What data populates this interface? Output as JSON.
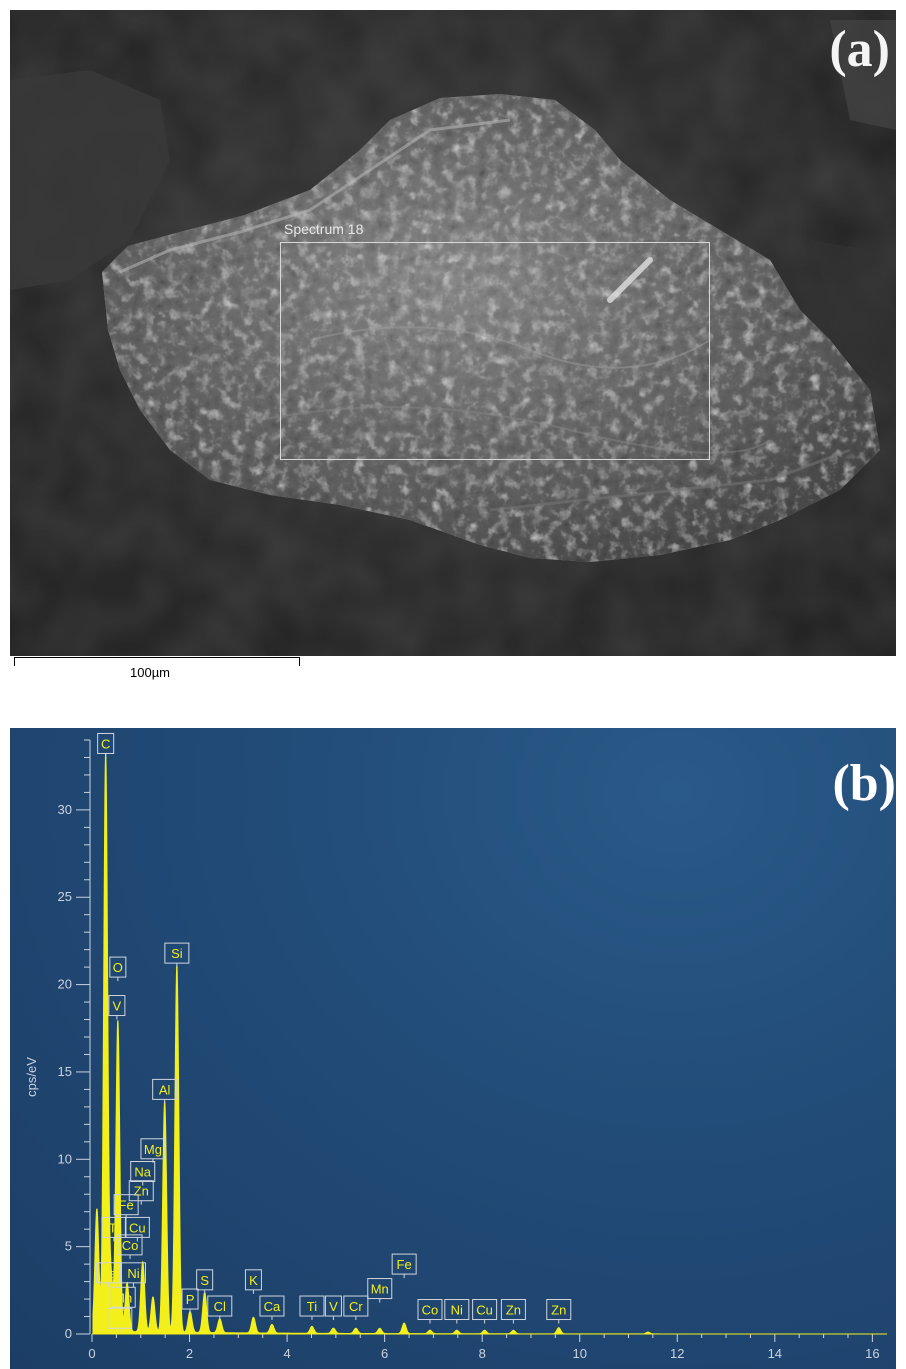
{
  "panel_a": {
    "letter": "(a)",
    "spectrum_label": "Spectrum 18",
    "scalebar_label": "100µm"
  },
  "panel_b": {
    "letter": "(b)"
  },
  "chart_data": {
    "type": "line",
    "title": "",
    "xlabel": "",
    "ylabel": "cps/eV",
    "xlim": [
      0,
      16.3
    ],
    "ylim": [
      0,
      34
    ],
    "x_ticks": [
      0,
      2,
      4,
      6,
      8,
      10,
      12,
      14,
      16
    ],
    "y_ticks": [
      0,
      5,
      10,
      15,
      20,
      25,
      30
    ],
    "series_color": "#f2ef1a",
    "peaks": [
      {
        "x": 0.1,
        "y": 7.0
      },
      {
        "x": 0.28,
        "y": 33.0
      },
      {
        "x": 0.39,
        "y": 3.0
      },
      {
        "x": 0.53,
        "y": 17.8
      },
      {
        "x": 0.72,
        "y": 2.8
      },
      {
        "x": 1.04,
        "y": 4.0
      },
      {
        "x": 1.25,
        "y": 2.0
      },
      {
        "x": 1.49,
        "y": 13.2
      },
      {
        "x": 1.74,
        "y": 21.0
      },
      {
        "x": 2.01,
        "y": 1.2
      },
      {
        "x": 2.31,
        "y": 2.3
      },
      {
        "x": 2.62,
        "y": 0.8
      },
      {
        "x": 3.31,
        "y": 0.9
      },
      {
        "x": 3.69,
        "y": 0.5
      },
      {
        "x": 4.51,
        "y": 0.4
      },
      {
        "x": 4.95,
        "y": 0.3
      },
      {
        "x": 5.41,
        "y": 0.3
      },
      {
        "x": 5.9,
        "y": 0.3
      },
      {
        "x": 6.4,
        "y": 0.6
      },
      {
        "x": 6.93,
        "y": 0.2
      },
      {
        "x": 7.48,
        "y": 0.2
      },
      {
        "x": 8.05,
        "y": 0.2
      },
      {
        "x": 8.64,
        "y": 0.2
      },
      {
        "x": 9.57,
        "y": 0.35
      },
      {
        "x": 11.4,
        "y": 0.1
      }
    ],
    "annotations": [
      {
        "label": "C",
        "x": 0.28,
        "y": 33.0
      },
      {
        "label": "O",
        "x": 0.53,
        "y": 20.2
      },
      {
        "label": "V",
        "x": 0.51,
        "y": 18.0
      },
      {
        "label": "Si",
        "x": 1.74,
        "y": 21.0
      },
      {
        "label": "Al",
        "x": 1.49,
        "y": 13.2
      },
      {
        "label": "Mg",
        "x": 1.25,
        "y": 9.8
      },
      {
        "label": "Na",
        "x": 1.04,
        "y": 8.5
      },
      {
        "label": "Zn",
        "x": 1.01,
        "y": 7.4
      },
      {
        "label": "Fe",
        "x": 0.7,
        "y": 6.6
      },
      {
        "label": "Ti",
        "x": 0.45,
        "y": 5.3
      },
      {
        "label": "Cu",
        "x": 0.93,
        "y": 5.3
      },
      {
        "label": "Co",
        "x": 0.78,
        "y": 4.3
      },
      {
        "label": "Ni",
        "x": 0.85,
        "y": 2.7
      },
      {
        "label": "Ca",
        "x": 0.34,
        "y": 2.7
      },
      {
        "label": "Mn",
        "x": 0.64,
        "y": 1.3
      },
      {
        "label": "Cr",
        "x": 0.57,
        "y": 0.1
      },
      {
        "label": "P",
        "x": 2.01,
        "y": 1.2
      },
      {
        "label": "S",
        "x": 2.31,
        "y": 2.3
      },
      {
        "label": "Cl",
        "x": 2.62,
        "y": 0.8
      },
      {
        "label": "K",
        "x": 3.31,
        "y": 2.3
      },
      {
        "label": "Ca",
        "x": 3.69,
        "y": 0.8
      },
      {
        "label": "Ti",
        "x": 4.51,
        "y": 0.8
      },
      {
        "label": "V",
        "x": 4.95,
        "y": 0.8
      },
      {
        "label": "Cr",
        "x": 5.41,
        "y": 0.8
      },
      {
        "label": "Mn",
        "x": 5.9,
        "y": 1.8
      },
      {
        "label": "Fe",
        "x": 6.4,
        "y": 3.2
      },
      {
        "label": "Co",
        "x": 6.93,
        "y": 0.6
      },
      {
        "label": "Ni",
        "x": 7.48,
        "y": 0.6
      },
      {
        "label": "Cu",
        "x": 8.05,
        "y": 0.6
      },
      {
        "label": "Zn",
        "x": 8.64,
        "y": 0.6
      },
      {
        "label": "Zn",
        "x": 9.57,
        "y": 0.6
      }
    ]
  }
}
